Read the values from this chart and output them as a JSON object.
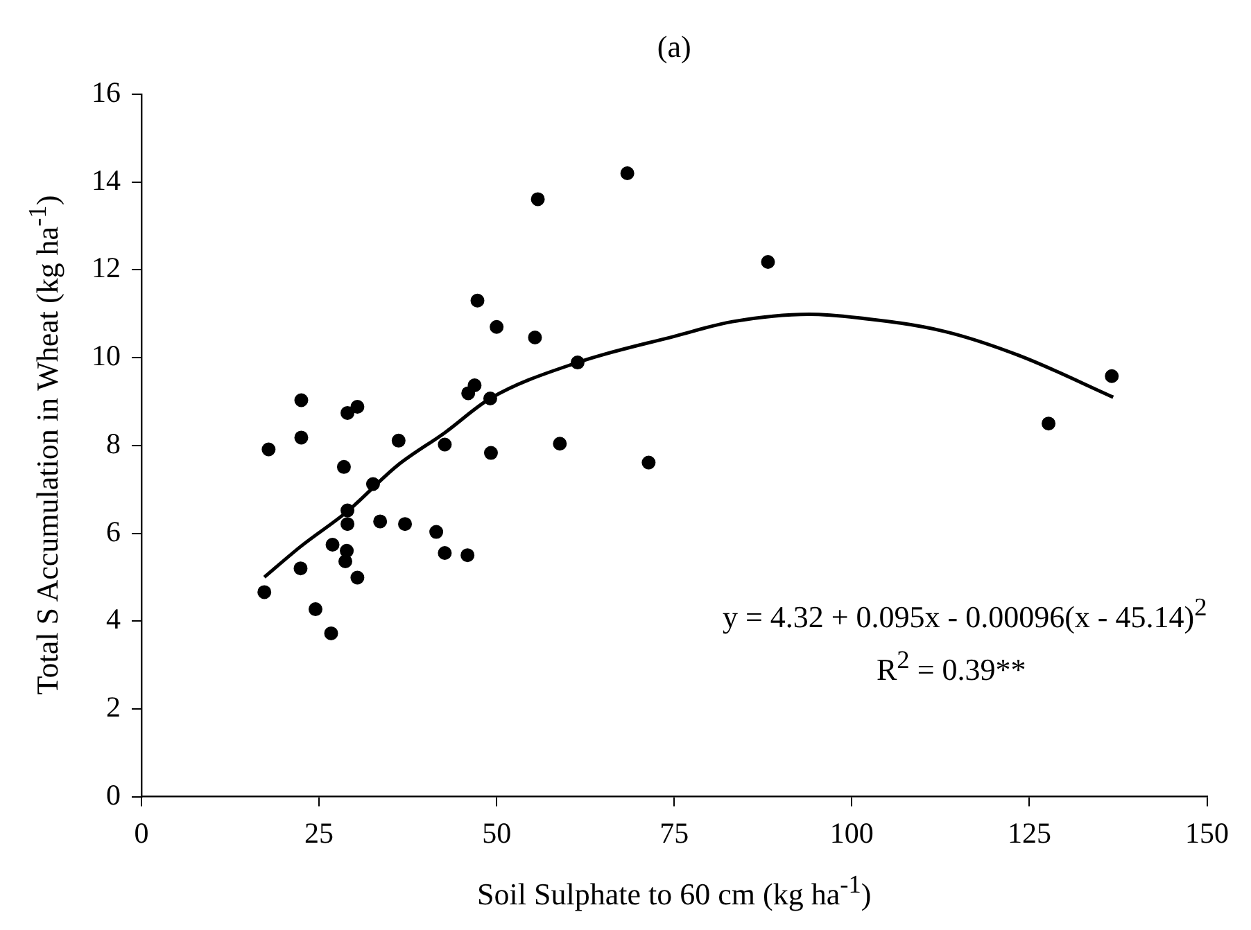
{
  "chart_data": {
    "type": "scatter",
    "title": "(a)",
    "xlabel": "Soil Sulphate to 60 cm (kg ha$^{-1}$)",
    "ylabel": "Total S Accumulation in Wheat (kg ha$^{-1}$)",
    "xlim": [
      0,
      150
    ],
    "xticks": [
      0,
      25,
      50,
      75,
      100,
      125,
      150
    ],
    "ylim": [
      0,
      16
    ],
    "yticks": [
      0,
      2,
      4,
      6,
      8,
      10,
      12,
      14,
      16
    ],
    "grid": false,
    "legend": false,
    "marker": "circle",
    "series": [
      {
        "color": "#000000",
        "x": [
          22.5,
          29.0,
          30.4,
          17.9,
          22.5,
          36.2,
          28.5,
          32.6,
          29.0,
          29.0,
          33.6,
          37.1,
          26.9,
          28.9,
          28.7,
          22.4,
          30.4,
          17.3,
          24.5,
          26.7,
          68.4,
          55.8,
          88.2,
          47.3,
          50.0,
          55.4,
          61.4,
          46.9,
          46.0,
          49.1,
          42.7,
          49.2,
          58.9,
          71.4,
          41.5,
          42.7,
          45.9,
          127.7,
          136.6
        ],
        "values": [
          9.03,
          8.74,
          8.88,
          7.91,
          8.18,
          8.11,
          7.51,
          7.12,
          6.52,
          6.21,
          6.27,
          6.21,
          5.74,
          5.6,
          5.36,
          5.2,
          4.99,
          4.66,
          4.27,
          3.72,
          14.2,
          13.61,
          12.18,
          11.3,
          10.7,
          10.46,
          9.89,
          9.37,
          9.19,
          9.07,
          8.02,
          7.83,
          8.04,
          7.61,
          6.03,
          5.55,
          5.5,
          8.5,
          9.58
        ]
      },
      {
        "type": "line",
        "color": "#000000",
        "marker": "none",
        "x": [
          17.3,
          22.5,
          29,
          36,
          42.7,
          49.1,
          61.4,
          75.1,
          83.2,
          94,
          100.8,
          113,
          123.7,
          136.8
        ],
        "values": [
          5.0,
          5.71,
          6.5,
          7.54,
          8.29,
          9.07,
          9.89,
          10.49,
          10.82,
          10.99,
          10.91,
          10.6,
          10.04,
          9.1
        ]
      }
    ],
    "annotations": [
      "y = 4.32 + 0.095x - 0.00096(x - 45.14)$^{2}$",
      "R$^{2}$ = 0.39**"
    ]
  }
}
